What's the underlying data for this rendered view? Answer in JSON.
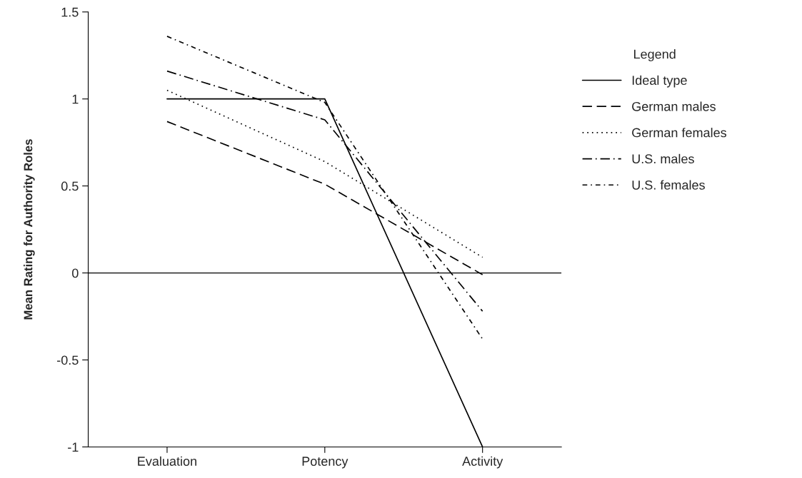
{
  "chart_data": {
    "type": "line",
    "ylabel": "Mean Rating for Authority Roles",
    "legend_title": "Legend",
    "categories": [
      "Evaluation",
      "Potency",
      "Activity"
    ],
    "series": [
      {
        "name": "Ideal type",
        "color": "#000000",
        "line_style": "solid",
        "values": [
          1,
          1,
          -1
        ]
      },
      {
        "name": "German males",
        "color": "#000000",
        "line_style": "dashed",
        "values": [
          0.87,
          0.51,
          -0.01
        ]
      },
      {
        "name": "German females",
        "color": "#000000",
        "line_style": "dotted",
        "values": [
          1.05,
          0.64,
          0.09
        ]
      },
      {
        "name": "U.S. males",
        "color": "#000000",
        "line_style": "dashdot",
        "values": [
          1.16,
          0.88,
          -0.22
        ]
      },
      {
        "name": "U.S. females",
        "color": "#000000",
        "line_style": "dashdotdot",
        "values": [
          1.36,
          0.98,
          -0.38
        ]
      }
    ],
    "ylim": [
      -1,
      1.5
    ],
    "yticks": [
      -1,
      -0.5,
      0,
      0.5,
      1,
      1.5
    ],
    "ref_lines": [
      {
        "axis": "y",
        "value": 0,
        "color": "#000000",
        "line_style": "solid"
      }
    ],
    "grid": false,
    "legend": "right",
    "marker": "none"
  }
}
